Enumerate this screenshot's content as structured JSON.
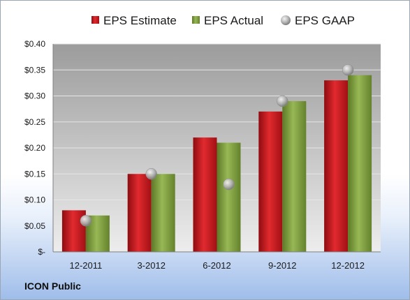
{
  "company_name": "ICON Public",
  "chart_data": {
    "type": "bar",
    "categories": [
      "12-2011",
      "3-2012",
      "6-2012",
      "9-2012",
      "12-2012"
    ],
    "series": [
      {
        "name": "EPS Estimate",
        "kind": "bar",
        "color": "#c0161b",
        "values": [
          0.08,
          0.15,
          0.22,
          0.27,
          0.33
        ]
      },
      {
        "name": "EPS Actual",
        "kind": "bar",
        "color": "#7a9a3c",
        "values": [
          0.07,
          0.15,
          0.21,
          0.29,
          0.34
        ]
      },
      {
        "name": "EPS GAAP",
        "kind": "marker",
        "color": "#a9a9a9",
        "values": [
          0.06,
          0.15,
          0.13,
          0.29,
          0.35
        ]
      }
    ],
    "y_ticks": [
      "$-",
      "$0.05",
      "$0.10",
      "$0.15",
      "$0.20",
      "$0.25",
      "$0.30",
      "$0.35",
      "$0.40"
    ],
    "ylim": [
      0,
      0.4
    ],
    "grid": true,
    "legend_position": "top"
  }
}
